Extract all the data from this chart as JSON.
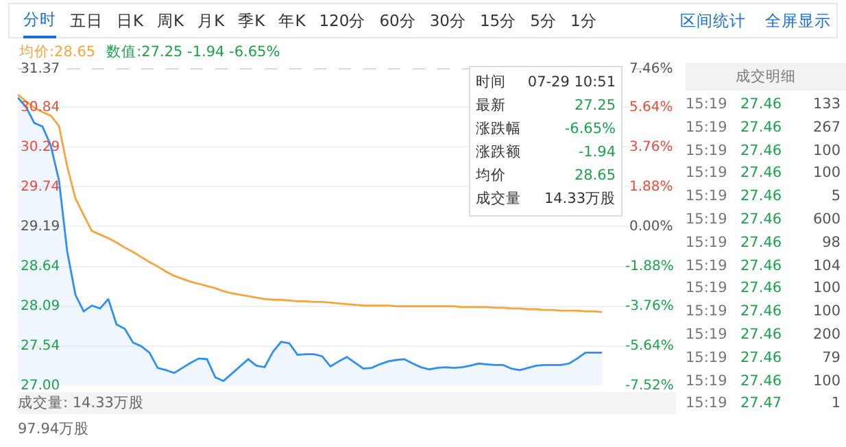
{
  "chart_data": {
    "type": "line",
    "categories": [
      null,
      null,
      null,
      null,
      null,
      null,
      null,
      null,
      null,
      null,
      null,
      null,
      null,
      null,
      null,
      null,
      null,
      null,
      null,
      null,
      null,
      null,
      null,
      null,
      null,
      null,
      null,
      null,
      null,
      null,
      null,
      null,
      null,
      null,
      null,
      null,
      null,
      null,
      null,
      null,
      null,
      null,
      null,
      null,
      null,
      null,
      null,
      null,
      null,
      null,
      null,
      null,
      null,
      null,
      null,
      null,
      null,
      null,
      null,
      null,
      null,
      null,
      null,
      null,
      null,
      null,
      null,
      null,
      null,
      null,
      null,
      null,
      null,
      null,
      null,
      null,
      null,
      null,
      null,
      null,
      null
    ],
    "ylim": [
      27.0,
      31.37
    ],
    "yticks": [
      {
        "value": 31.37,
        "label": "31.37"
      },
      {
        "value": 30.84,
        "label": "30.84"
      },
      {
        "value": 30.29,
        "label": "30.29"
      },
      {
        "value": 29.74,
        "label": "29.74"
      },
      {
        "value": 29.19,
        "label": "29.19"
      },
      {
        "value": 28.64,
        "label": "28.64"
      },
      {
        "value": 28.09,
        "label": "28.09"
      },
      {
        "value": 27.54,
        "label": "27.54"
      },
      {
        "value": 27.0,
        "label": "27.00"
      }
    ],
    "y2lim": [
      -7.52,
      7.46
    ],
    "y2ticks": [
      {
        "value": 7.46,
        "label": "7.46%"
      },
      {
        "value": 5.64,
        "label": "5.64%"
      },
      {
        "value": 3.76,
        "label": "3.76%"
      },
      {
        "value": 1.88,
        "label": "1.88%"
      },
      {
        "value": 0,
        "label": "0.00%"
      },
      {
        "value": -1.88,
        "label": "-1.88%"
      },
      {
        "value": -3.76,
        "label": "-3.76%"
      },
      {
        "value": -5.64,
        "label": "-5.64%"
      },
      {
        "value": -7.52,
        "label": "-7.52%"
      }
    ],
    "tick_labels": "y",
    "grid": "y",
    "series": [
      {
        "type": "area",
        "color": "#2f8ff0",
        "values": [
          30.97,
          30.84,
          30.62,
          30.57,
          30.31,
          29.83,
          28.85,
          28.25,
          28.02,
          28.1,
          28.06,
          28.19,
          27.84,
          27.78,
          27.59,
          27.54,
          27.45,
          27.24,
          27.21,
          27.17,
          27.24,
          27.31,
          27.37,
          27.36,
          27.11,
          27.06,
          27.16,
          27.26,
          27.36,
          27.27,
          27.25,
          27.46,
          27.6,
          27.58,
          27.42,
          27.43,
          27.43,
          27.4,
          27.26,
          27.33,
          27.39,
          27.31,
          27.23,
          27.24,
          27.29,
          27.33,
          27.35,
          27.36,
          27.3,
          27.25,
          27.22,
          27.24,
          27.25,
          27.24,
          27.25,
          27.27,
          27.3,
          27.29,
          27.28,
          27.28,
          27.23,
          27.21,
          27.24,
          27.27,
          27.28,
          27.28,
          27.28,
          27.3,
          27.37,
          27.45,
          27.45,
          27.45,
          null,
          null,
          null,
          null,
          null,
          null,
          null,
          null,
          null
        ]
      },
      {
        "type": "line",
        "color": "#f5a53c",
        "values": [
          31.01,
          30.92,
          30.83,
          30.77,
          30.72,
          30.58,
          30.02,
          29.58,
          29.35,
          29.13,
          29.08,
          29.03,
          28.97,
          28.9,
          28.84,
          28.77,
          28.7,
          28.64,
          28.57,
          28.51,
          28.47,
          28.43,
          28.4,
          28.37,
          28.34,
          28.3,
          28.27,
          28.25,
          28.23,
          28.21,
          28.19,
          28.18,
          28.18,
          28.17,
          28.16,
          28.16,
          28.15,
          28.15,
          28.14,
          28.13,
          28.12,
          28.11,
          28.1,
          28.1,
          28.1,
          28.1,
          28.09,
          28.09,
          28.09,
          28.09,
          28.09,
          28.09,
          28.09,
          28.09,
          28.08,
          28.08,
          28.08,
          28.08,
          28.07,
          28.07,
          28.06,
          28.06,
          28.05,
          28.05,
          28.04,
          28.04,
          28.03,
          28.03,
          28.03,
          28.02,
          28.02,
          28.01,
          null,
          null,
          null,
          null,
          null,
          null,
          null,
          null,
          null
        ]
      }
    ],
    "ref_lines": [
      {
        "axis": "y",
        "value": 31.37,
        "line_style": "dashed",
        "color": "#bbbbbb"
      }
    ],
    "annotations": [
      "分时 五日 日K 周K 月K 季K 年K 120分 60分 30分 15分 5分 1分",
      "区间统计 全屏显示",
      "均价:28.65",
      "数值:27.25 -1.94 -6.65%",
      "时间 07-29 10:51\n最新 27.25\n涨跌幅 -6.65%\n涨跌额 -1.94\n均价 28.65\n成交量 14.33万股",
      "成交明细\n15:19 27.46 133\n15:19 27.46 267\n15:19 27.46 100\n15:19 27.46 100\n15:19 27.46 5\n15:19 27.46 600\n15:19 27.46 98\n15:19 27.46 104\n15:19 27.46 100\n15:19 27.46 100\n15:19 27.46 200\n15:19 27.46 79\n15:19 27.46 100\n15:19 27.47 1",
      "成交量: 14.33万股",
      "97.94万股"
    ]
  }
}
